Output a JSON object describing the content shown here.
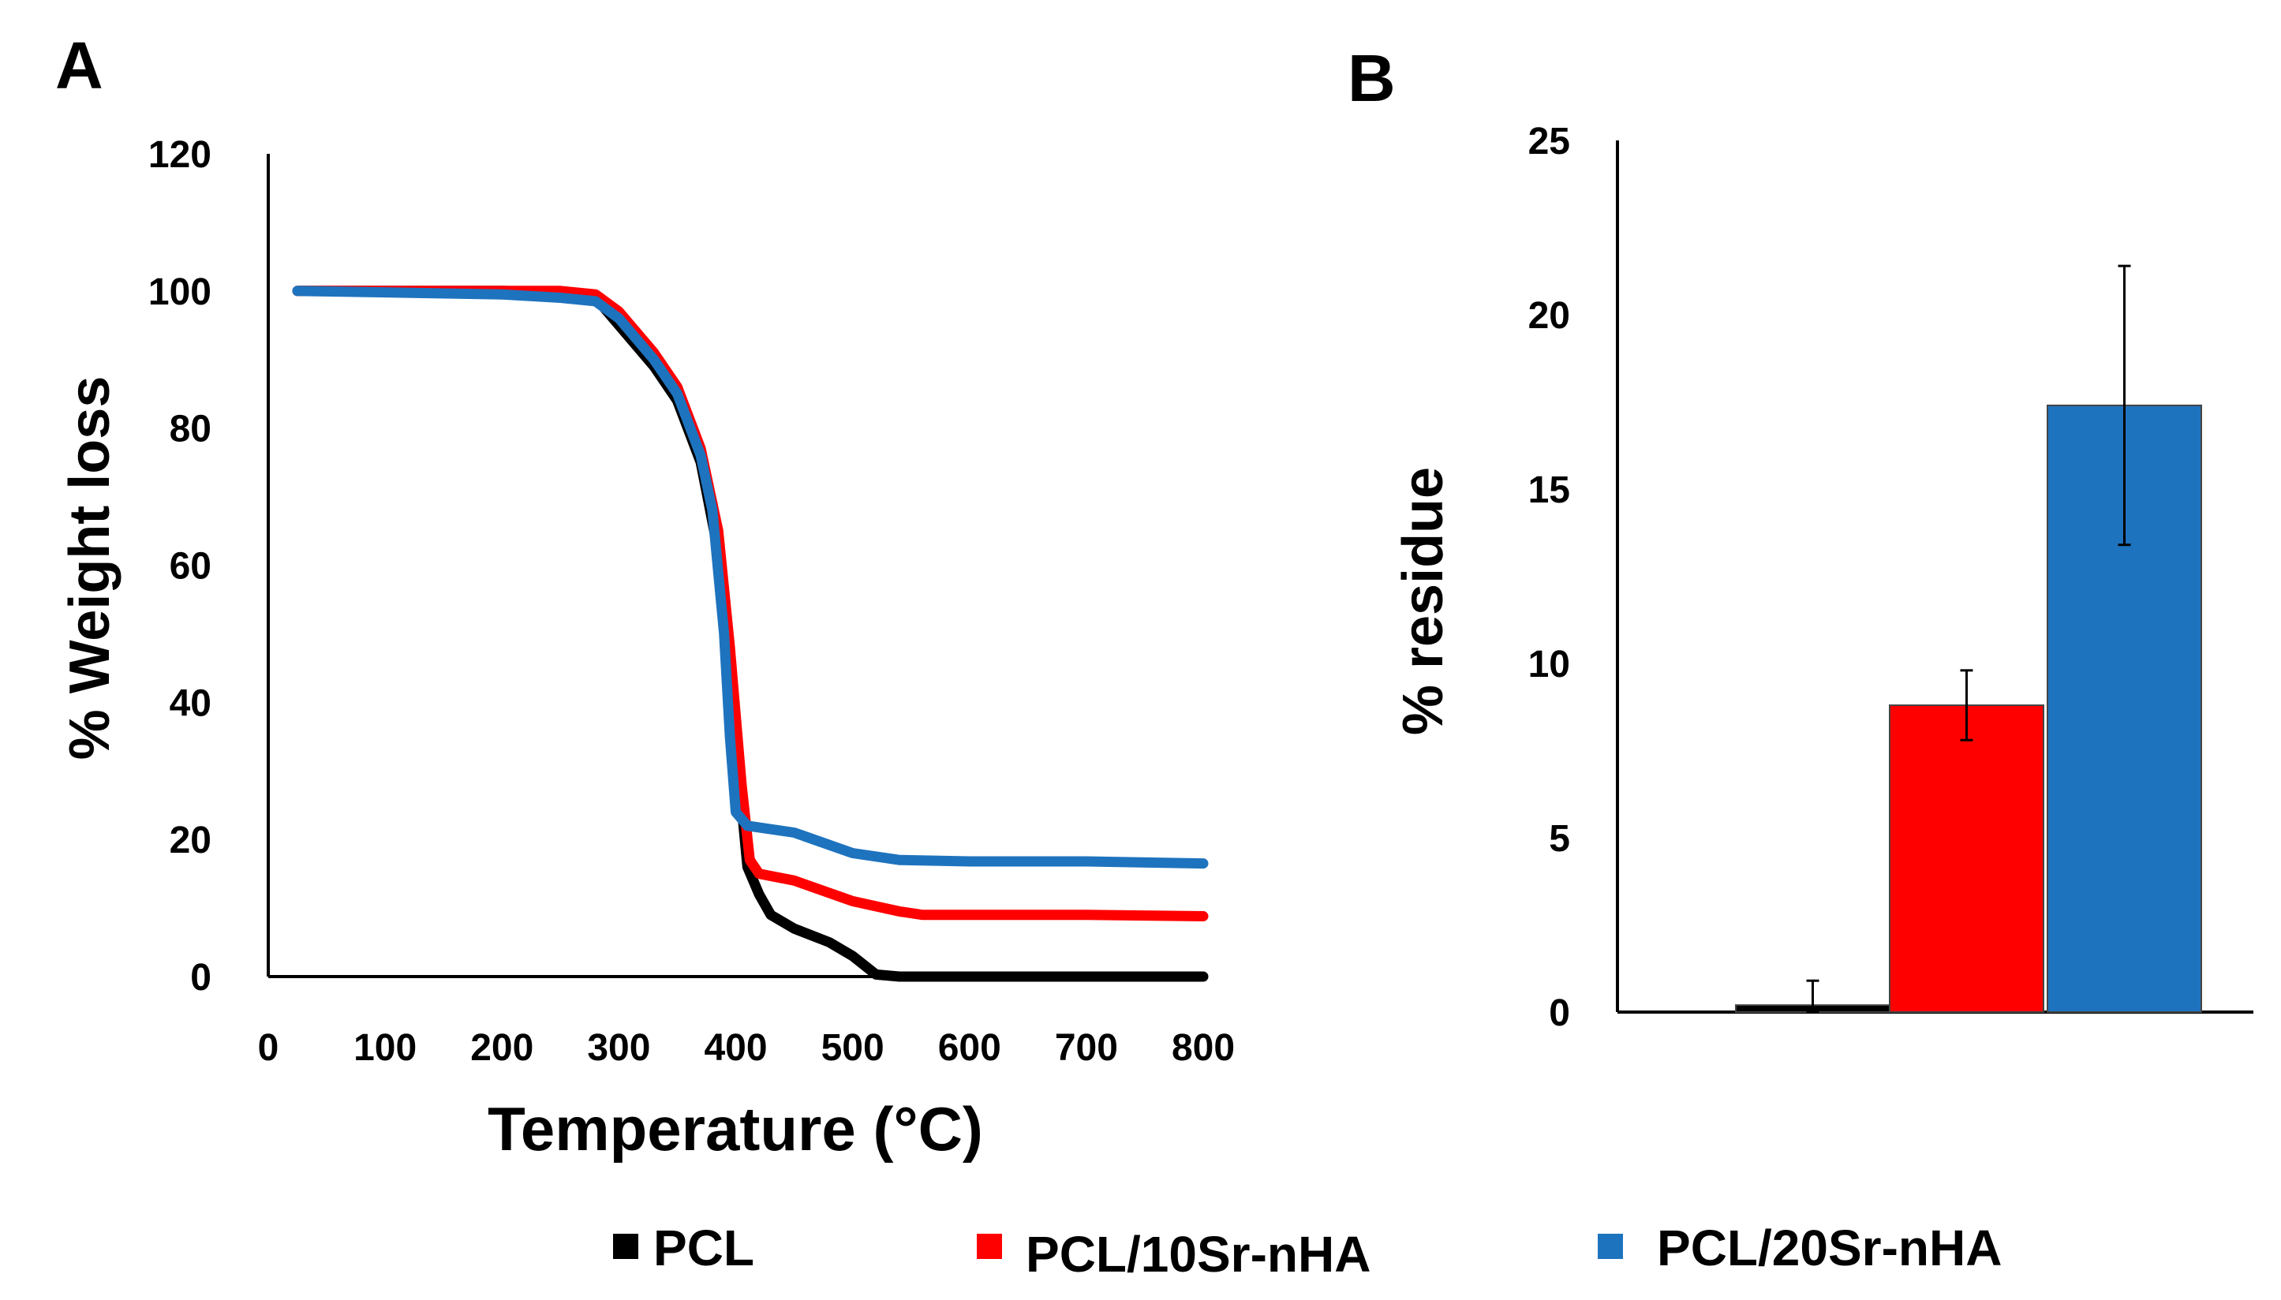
{
  "colors": {
    "PCL": "#000000",
    "PCL/10Sr-nHA": "#ff0000",
    "PCL/20Sr-nHA": "#1e73be"
  },
  "legend": {
    "entries": [
      "PCL",
      "PCL/10Sr-nHA",
      "PCL/20Sr-nHA"
    ]
  },
  "chart_data": [
    {
      "panel": "A",
      "type": "line",
      "title": "",
      "xlabel": "Temperature (°C)",
      "ylabel": "% Weight loss",
      "xlim": [
        0,
        800
      ],
      "ylim": [
        0,
        120
      ],
      "xticks": [
        0,
        100,
        200,
        300,
        400,
        500,
        600,
        700,
        800
      ],
      "yticks": [
        0,
        20,
        40,
        60,
        80,
        100,
        120
      ],
      "grid": false,
      "series": [
        {
          "name": "PCL",
          "points": [
            [
              25,
              100
            ],
            [
              100,
              100
            ],
            [
              200,
              100
            ],
            [
              250,
              99.8
            ],
            [
              280,
              99
            ],
            [
              300,
              95
            ],
            [
              330,
              89
            ],
            [
              350,
              84
            ],
            [
              370,
              75
            ],
            [
              385,
              62
            ],
            [
              395,
              45
            ],
            [
              405,
              25
            ],
            [
              410,
              16
            ],
            [
              420,
              12
            ],
            [
              430,
              9
            ],
            [
              450,
              7
            ],
            [
              480,
              5
            ],
            [
              500,
              3
            ],
            [
              520,
              0.3
            ],
            [
              540,
              0
            ],
            [
              600,
              0
            ],
            [
              700,
              0
            ],
            [
              800,
              0
            ]
          ]
        },
        {
          "name": "PCL/10Sr-nHA",
          "points": [
            [
              25,
              100
            ],
            [
              100,
              100
            ],
            [
              200,
              100
            ],
            [
              250,
              100
            ],
            [
              280,
              99.5
            ],
            [
              300,
              97
            ],
            [
              330,
              91
            ],
            [
              350,
              86
            ],
            [
              370,
              77
            ],
            [
              385,
              65
            ],
            [
              395,
              48
            ],
            [
              405,
              28
            ],
            [
              412,
              17
            ],
            [
              420,
              15
            ],
            [
              450,
              14
            ],
            [
              500,
              11
            ],
            [
              540,
              9.5
            ],
            [
              560,
              9
            ],
            [
              600,
              9
            ],
            [
              700,
              9
            ],
            [
              800,
              8.8
            ]
          ]
        },
        {
          "name": "PCL/20Sr-nHA",
          "points": [
            [
              25,
              100
            ],
            [
              100,
              99.8
            ],
            [
              200,
              99.5
            ],
            [
              250,
              99
            ],
            [
              280,
              98.5
            ],
            [
              300,
              96
            ],
            [
              330,
              90
            ],
            [
              350,
              85
            ],
            [
              370,
              76
            ],
            [
              380,
              68
            ],
            [
              390,
              50
            ],
            [
              395,
              35
            ],
            [
              400,
              24
            ],
            [
              410,
              22
            ],
            [
              450,
              21
            ],
            [
              500,
              18
            ],
            [
              540,
              17
            ],
            [
              600,
              16.8
            ],
            [
              700,
              16.8
            ],
            [
              800,
              16.5
            ]
          ]
        }
      ]
    },
    {
      "panel": "B",
      "type": "bar",
      "title": "",
      "xlabel": "",
      "ylabel": "% residue",
      "ylim": [
        0,
        25
      ],
      "yticks": [
        0,
        5,
        10,
        15,
        20,
        25
      ],
      "grid": false,
      "categories": [
        "PCL",
        "PCL/10Sr-nHA",
        "PCL/20Sr-nHA"
      ],
      "values": [
        0.2,
        8.8,
        17.4
      ],
      "errors": [
        0.7,
        1.0,
        4.0
      ]
    }
  ],
  "panel_labels": [
    "A",
    "B"
  ]
}
